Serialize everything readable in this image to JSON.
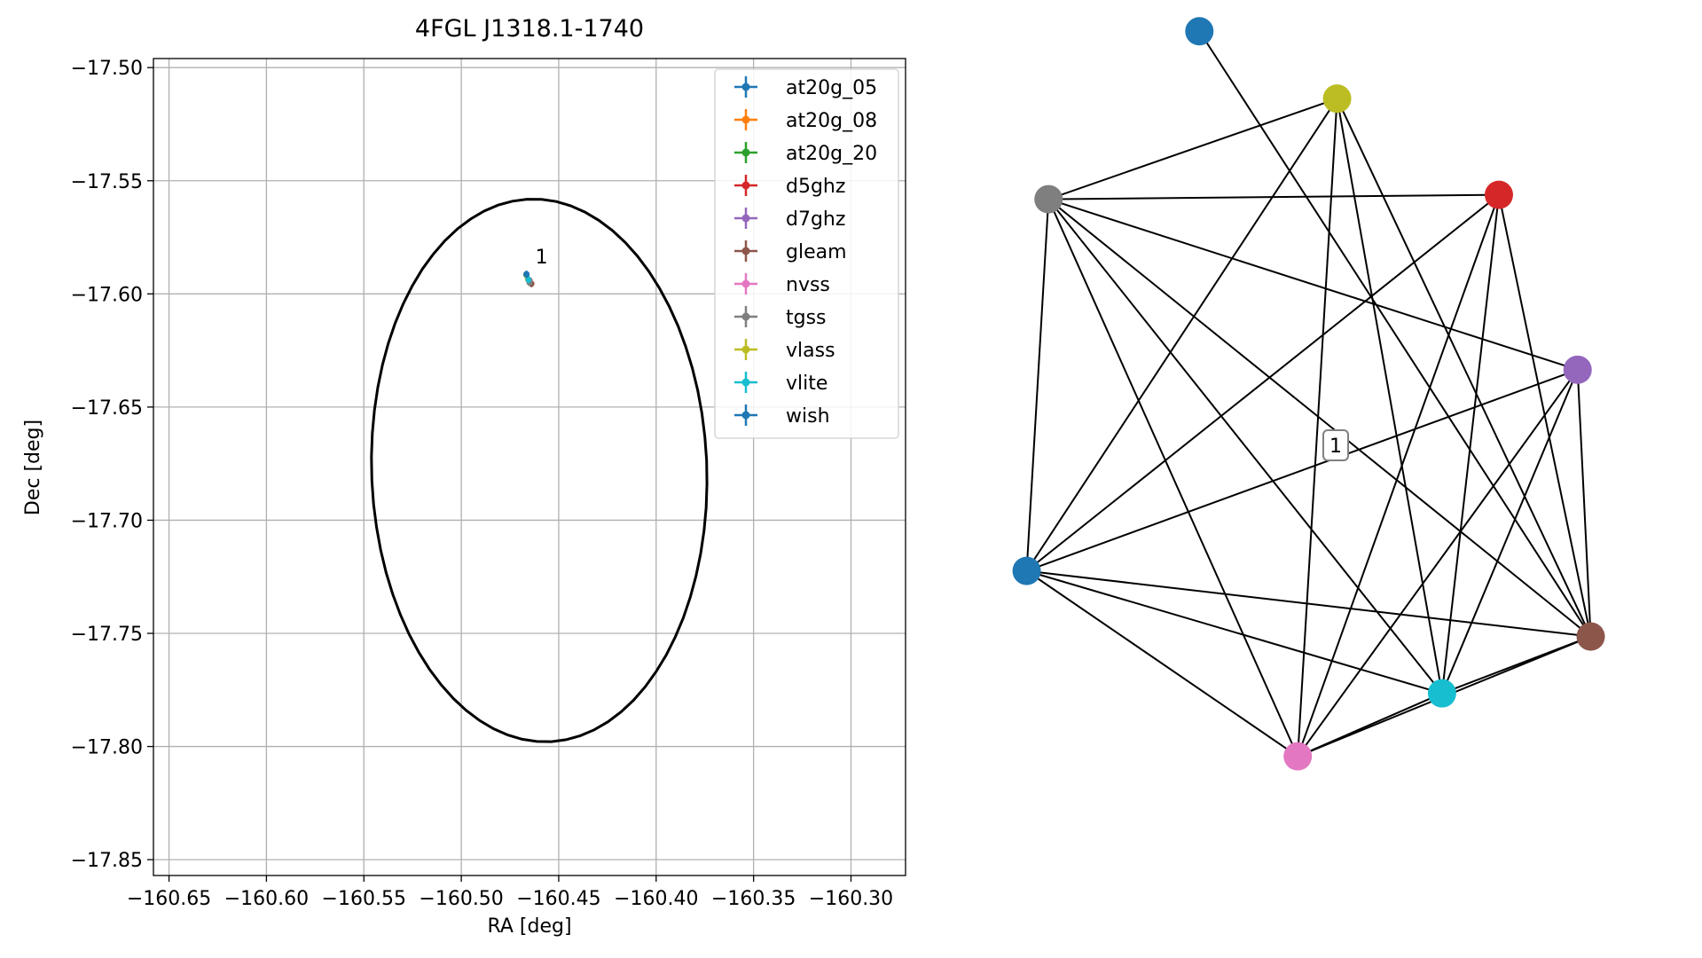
{
  "chart_data": [
    {
      "type": "scatter",
      "title": "4FGL J1318.1-1740",
      "xlabel": "RA [deg]",
      "ylabel": "Dec [deg]",
      "xlim": [
        -160.658,
        -160.272
      ],
      "ylim": [
        -17.857,
        -17.496
      ],
      "xticks": [
        -160.65,
        -160.6,
        -160.55,
        -160.5,
        -160.45,
        -160.4,
        -160.35,
        -160.3
      ],
      "xtick_labels": [
        "−160.65",
        "−160.60",
        "−160.55",
        "−160.50",
        "−160.45",
        "−160.40",
        "−160.35",
        "−160.30"
      ],
      "yticks": [
        -17.5,
        -17.55,
        -17.6,
        -17.65,
        -17.7,
        -17.75,
        -17.8,
        -17.85
      ],
      "ytick_labels": [
        "−17.50",
        "−17.55",
        "−17.60",
        "−17.65",
        "−17.70",
        "−17.75",
        "−17.80",
        "−17.85"
      ],
      "grid": true,
      "legend_position": "top-right",
      "ellipse": {
        "ra_center": -160.46,
        "dec_center": -17.678,
        "semi_axis_ra": 0.086,
        "semi_axis_dec": 0.12,
        "rotation_deg": 3,
        "color": "#000000"
      },
      "series": [
        {
          "name": "at20g_05",
          "color": "#1f77b4",
          "points": [
            {
              "ra": -160.4666,
              "dec": -17.5913
            }
          ]
        },
        {
          "name": "at20g_08",
          "color": "#ff7f0e",
          "points": [
            {
              "ra": -160.4666,
              "dec": -17.5915
            }
          ]
        },
        {
          "name": "at20g_20",
          "color": "#2ca02c",
          "points": [
            {
              "ra": -160.4666,
              "dec": -17.5916
            }
          ]
        },
        {
          "name": "d5ghz",
          "color": "#d62728",
          "points": [
            {
              "ra": -160.465,
              "dec": -17.594
            }
          ]
        },
        {
          "name": "d7ghz",
          "color": "#9467bd",
          "points": [
            {
              "ra": -160.4652,
              "dec": -17.5942
            }
          ]
        },
        {
          "name": "gleam",
          "color": "#8c564b",
          "points": [
            {
              "ra": -160.464,
              "dec": -17.5955
            }
          ]
        },
        {
          "name": "nvss",
          "color": "#e377c2",
          "points": [
            {
              "ra": -160.4655,
              "dec": -17.5938
            }
          ]
        },
        {
          "name": "tgss",
          "color": "#7f7f7f",
          "points": [
            {
              "ra": -160.465,
              "dec": -17.595
            }
          ]
        },
        {
          "name": "vlass",
          "color": "#bcbd22",
          "points": [
            {
              "ra": -160.4658,
              "dec": -17.5935
            }
          ]
        },
        {
          "name": "vlite",
          "color": "#17becf",
          "points": [
            {
              "ra": -160.4655,
              "dec": -17.5937
            }
          ]
        },
        {
          "name": "wish",
          "color": "#1f77b4",
          "points": [
            {
              "ra": -160.4665,
              "dec": -17.5914
            }
          ]
        }
      ],
      "annotations": [
        {
          "text": "1",
          "ra": -160.462,
          "dec": -17.5866
        }
      ]
    },
    {
      "type": "network",
      "cluster_label": "1",
      "nodes": [
        {
          "id": "at20g_05",
          "color": "#1f77b4",
          "x": -0.255,
          "y": 0.894
        },
        {
          "id": "vlass",
          "color": "#bcbd22",
          "x": 0.06,
          "y": 0.74
        },
        {
          "id": "tgss",
          "color": "#7f7f7f",
          "x": -0.6,
          "y": 0.51
        },
        {
          "id": "d5ghz",
          "color": "#d62728",
          "x": 0.43,
          "y": 0.52
        },
        {
          "id": "d7ghz",
          "color": "#9467bd",
          "x": 0.61,
          "y": 0.12
        },
        {
          "id": "wish",
          "color": "#1f77b4",
          "x": -0.65,
          "y": -0.34
        },
        {
          "id": "gleam",
          "color": "#8c564b",
          "x": 0.64,
          "y": -0.49
        },
        {
          "id": "vlite",
          "color": "#17becf",
          "x": 0.3,
          "y": -0.62
        },
        {
          "id": "nvss",
          "color": "#e377c2",
          "x": -0.03,
          "y": -0.764
        }
      ],
      "edges": [
        [
          "at20g_05",
          "gleam"
        ],
        [
          "vlass",
          "tgss"
        ],
        [
          "vlass",
          "wish"
        ],
        [
          "vlass",
          "nvss"
        ],
        [
          "vlass",
          "vlite"
        ],
        [
          "vlass",
          "gleam"
        ],
        [
          "tgss",
          "d5ghz"
        ],
        [
          "tgss",
          "d7ghz"
        ],
        [
          "tgss",
          "wish"
        ],
        [
          "tgss",
          "nvss"
        ],
        [
          "tgss",
          "vlite"
        ],
        [
          "tgss",
          "gleam"
        ],
        [
          "d5ghz",
          "wish"
        ],
        [
          "d5ghz",
          "nvss"
        ],
        [
          "d5ghz",
          "vlite"
        ],
        [
          "d5ghz",
          "gleam"
        ],
        [
          "d7ghz",
          "wish"
        ],
        [
          "d7ghz",
          "nvss"
        ],
        [
          "d7ghz",
          "vlite"
        ],
        [
          "d7ghz",
          "gleam"
        ],
        [
          "wish",
          "nvss"
        ],
        [
          "wish",
          "vlite"
        ],
        [
          "wish",
          "gleam"
        ],
        [
          "nvss",
          "vlite"
        ],
        [
          "nvss",
          "gleam"
        ],
        [
          "vlite",
          "gleam"
        ]
      ]
    }
  ]
}
